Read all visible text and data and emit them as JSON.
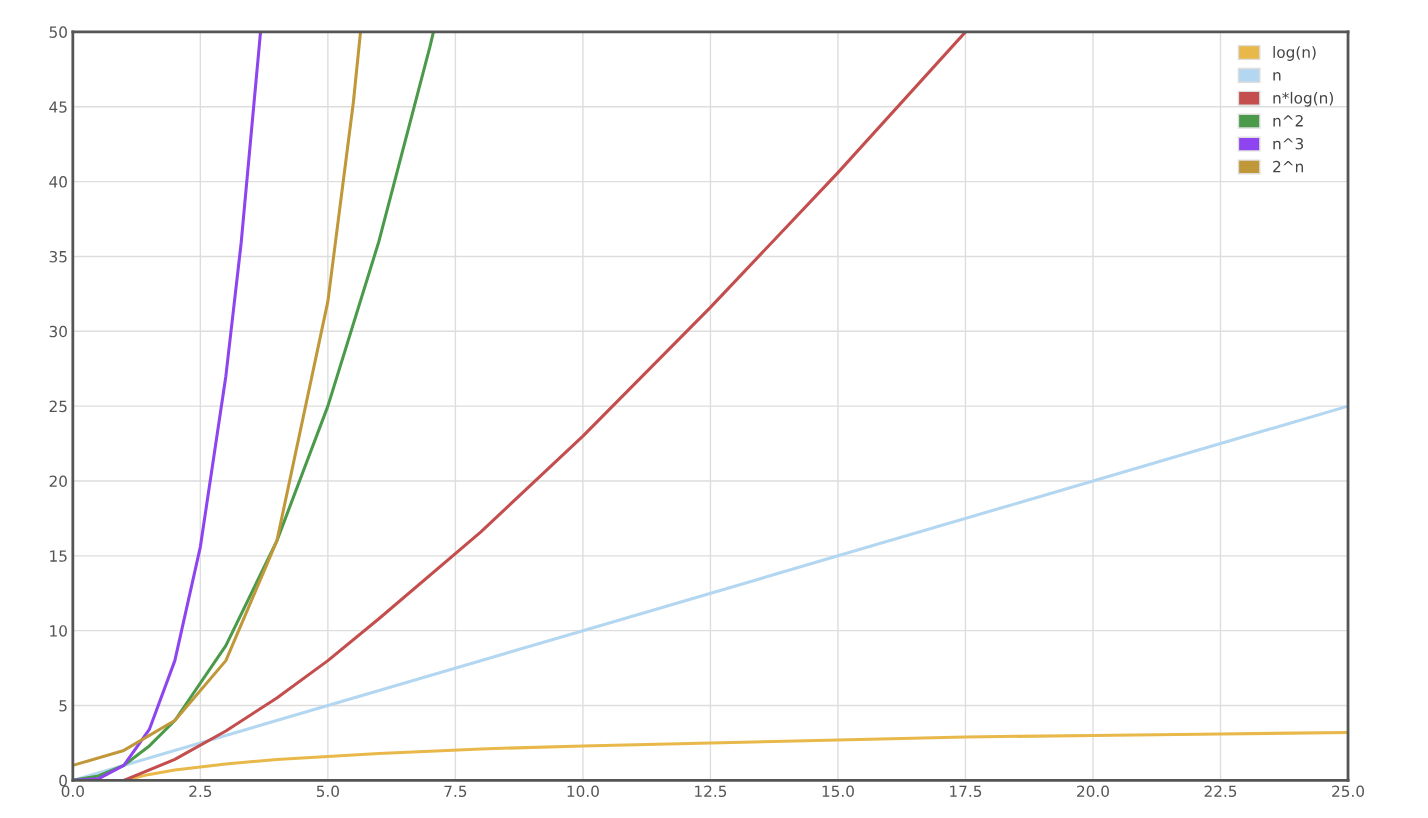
{
  "chart_data": {
    "type": "line",
    "xlim": [
      0,
      25
    ],
    "ylim": [
      0,
      50
    ],
    "xticks": [
      {
        "value": 0,
        "label": "0.0"
      },
      {
        "value": 2.5,
        "label": "2.5"
      },
      {
        "value": 5,
        "label": "5.0"
      },
      {
        "value": 7.5,
        "label": "7.5"
      },
      {
        "value": 10,
        "label": "10.0"
      },
      {
        "value": 12.5,
        "label": "12.5"
      },
      {
        "value": 15,
        "label": "15.0"
      },
      {
        "value": 17.5,
        "label": "17.5"
      },
      {
        "value": 20,
        "label": "20.0"
      },
      {
        "value": 22.5,
        "label": "22.5"
      },
      {
        "value": 25,
        "label": "25.0"
      }
    ],
    "yticks": [
      0,
      5,
      10,
      15,
      20,
      25,
      30,
      35,
      40,
      45,
      50
    ],
    "grid": true,
    "legend": "top right",
    "marker": "none",
    "line_style": "solid",
    "series": [
      {
        "name": "log(n)",
        "color": "#e8b84a",
        "x": [
          1,
          1.5,
          2,
          3,
          4,
          5,
          6,
          8,
          10,
          12.5,
          15,
          17.5,
          20,
          22.5,
          25
        ],
        "values": [
          0,
          0.4,
          0.7,
          1.1,
          1.4,
          1.6,
          1.8,
          2.1,
          2.3,
          2.5,
          2.7,
          2.9,
          3.0,
          3.1,
          3.2
        ]
      },
      {
        "name": "n",
        "color": "#b3d7f0",
        "x": [
          0,
          5,
          10,
          15,
          20,
          25
        ],
        "values": [
          0,
          5,
          10,
          15,
          20,
          25
        ]
      },
      {
        "name": "n*log(n)",
        "color": "#c44d4d",
        "x": [
          1,
          2,
          3,
          4,
          5,
          6,
          8,
          10,
          12.5,
          15,
          17.5
        ],
        "values": [
          0,
          1.4,
          3.3,
          5.5,
          8.0,
          10.8,
          16.6,
          23.0,
          31.6,
          40.6,
          50
        ]
      },
      {
        "name": "n^2",
        "color": "#4a9a4a",
        "x": [
          0,
          0.5,
          1,
          1.5,
          2,
          3,
          4,
          5,
          6,
          7,
          7.07
        ],
        "values": [
          0,
          0.3,
          1,
          2.3,
          4,
          9,
          16,
          25,
          36,
          49,
          50
        ]
      },
      {
        "name": "n^3",
        "color": "#8e44ef",
        "x": [
          0,
          0.5,
          1,
          1.5,
          2,
          2.5,
          3,
          3.3,
          3.68
        ],
        "values": [
          0,
          0.1,
          1,
          3.4,
          8,
          15.6,
          27,
          35.9,
          50
        ]
      },
      {
        "name": "2^n",
        "color": "#c0983a",
        "x": [
          0,
          1,
          2,
          3,
          4,
          5,
          5.5,
          5.64
        ],
        "values": [
          1,
          2,
          4,
          8,
          16,
          32,
          45.3,
          50
        ]
      }
    ]
  }
}
